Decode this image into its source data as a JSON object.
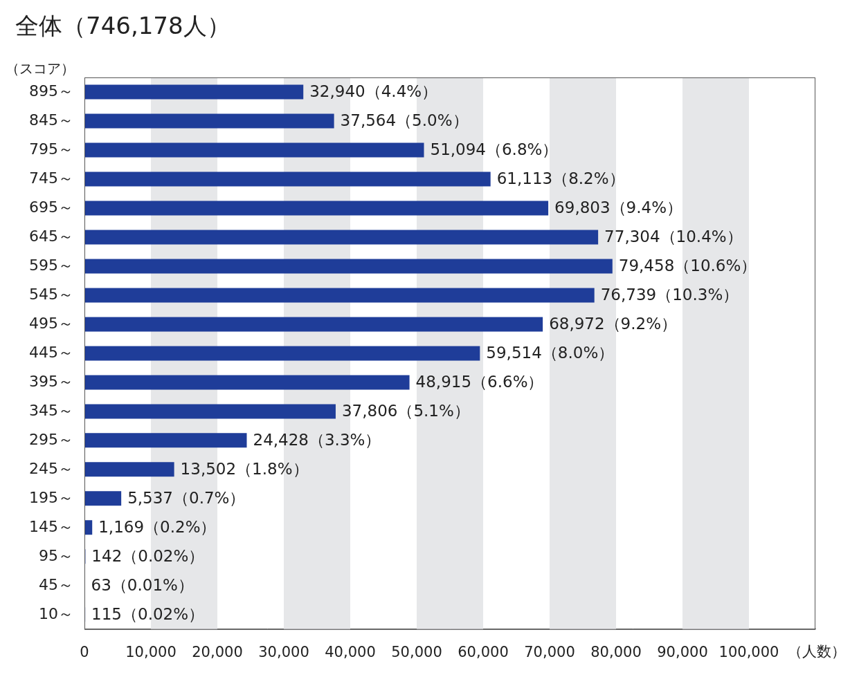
{
  "chart_data": {
    "type": "bar",
    "orientation": "horizontal",
    "title": "全体（746,178人）",
    "y_label": "（スコア）",
    "x_label": "（人数）",
    "categories": [
      "895～",
      "845～",
      "795～",
      "745～",
      "695～",
      "645～",
      "595～",
      "545～",
      "495～",
      "445～",
      "395～",
      "345～",
      "295～",
      "245～",
      "195～",
      "145～",
      "95～",
      "45～",
      "10～"
    ],
    "values": [
      32940,
      37564,
      51094,
      61113,
      69803,
      77304,
      79458,
      76739,
      68972,
      59514,
      48915,
      37806,
      24428,
      13502,
      5537,
      1169,
      142,
      63,
      115
    ],
    "value_labels": [
      "32,940（4.4%）",
      "37,564（5.0%）",
      "51,094（6.8%）",
      "61,113（8.2%）",
      "69,803（9.4%）",
      "77,304（10.4%）",
      "79,458（10.6%）",
      "76,739（10.3%）",
      "68,972（9.2%）",
      "59,514（8.0%）",
      "48,915（6.6%）",
      "37,806（5.1%）",
      "24,428（3.3%）",
      "13,502（1.8%）",
      "5,537（0.7%）",
      "1,169（0.2%）",
      "142（0.02%）",
      "63（0.01%）",
      "115（0.02%）"
    ],
    "data_labels": true,
    "color": "#1f3d99",
    "xlim": [
      0,
      110000
    ],
    "xticks": [
      0,
      {
        "value": 10000,
        "label": "10,000"
      },
      {
        "value": 20000,
        "label": "20,000"
      },
      {
        "value": 30000,
        "label": "30,000"
      },
      {
        "value": 40000,
        "label": "40,000"
      },
      {
        "value": 50000,
        "label": "50,000"
      },
      {
        "value": 60000,
        "label": "60,000"
      },
      {
        "value": 70000,
        "label": "70,000"
      },
      {
        "value": 80000,
        "label": "80,000"
      },
      {
        "value": 90000,
        "label": "90,000"
      },
      {
        "value": 100000,
        "label": "100,000"
      }
    ],
    "grid": true
  }
}
